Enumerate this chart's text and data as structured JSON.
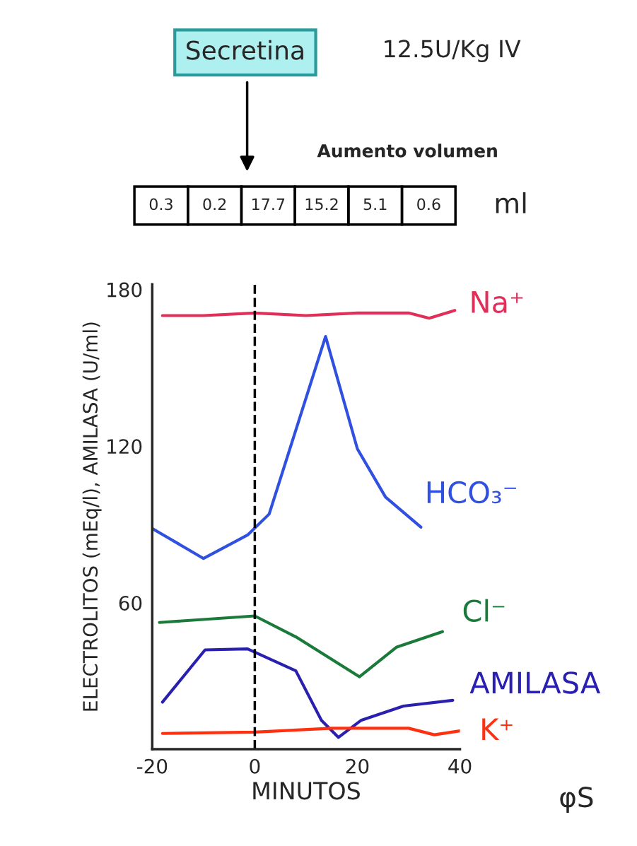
{
  "chart_data": {
    "type": "line",
    "xlabel": "MINUTOS",
    "ylabel": "ELECTROLITOS (mEq/l), AMILASA (U/ml)",
    "xlim": [
      -20,
      40
    ],
    "ylim": [
      4,
      182
    ],
    "xticks": [
      -20,
      0,
      20,
      40
    ],
    "yticks": [
      60,
      120,
      180
    ],
    "grid": false,
    "legend": false,
    "marker": "none",
    "line_style": "solid",
    "series": [
      {
        "name": "Na⁺",
        "color": "#e0305a",
        "x": [
          -18,
          -10,
          0,
          10,
          20,
          30,
          34,
          39
        ],
        "values": [
          170,
          170,
          171,
          170,
          171,
          171,
          169,
          172
        ]
      },
      {
        "name": "HCO₃⁻",
        "color": "#3050e0",
        "x": [
          -20,
          -10,
          -1.4,
          2.8,
          13.8,
          20,
          25.5,
          32.4
        ],
        "values": [
          88.5,
          77,
          86,
          94,
          162,
          119,
          100.5,
          89
        ]
      },
      {
        "name": "Cl⁻",
        "color": "#1a7a3a",
        "x": [
          -18.6,
          0,
          8,
          20.4,
          27.6,
          36.6
        ],
        "values": [
          52.5,
          55,
          47,
          31.7,
          43,
          49
        ]
      },
      {
        "name": "AMILASA",
        "color": "#2a20b0",
        "x": [
          -18,
          -9.7,
          -1.4,
          8,
          13,
          16.3,
          20.7,
          29,
          38.6
        ],
        "values": [
          22,
          42,
          42.4,
          34,
          15,
          8.5,
          15,
          20.5,
          22.7
        ]
      },
      {
        "name": "K⁺",
        "color": "#ff3010",
        "x": [
          -18,
          0,
          15,
          30,
          35,
          40
        ],
        "values": [
          10,
          10.5,
          12,
          12,
          9.5,
          11
        ]
      }
    ],
    "ref_lines": [
      {
        "axis": "x",
        "value": 0,
        "color": "#000000",
        "line_style": "dashed"
      }
    ],
    "annotations": [
      "Secretina",
      "12.5U/Kg IV",
      "Aumento volumen",
      "0.3",
      "0.2",
      "17.7",
      "15.2",
      "5.1",
      "0.6",
      "ml",
      "φS"
    ]
  }
}
